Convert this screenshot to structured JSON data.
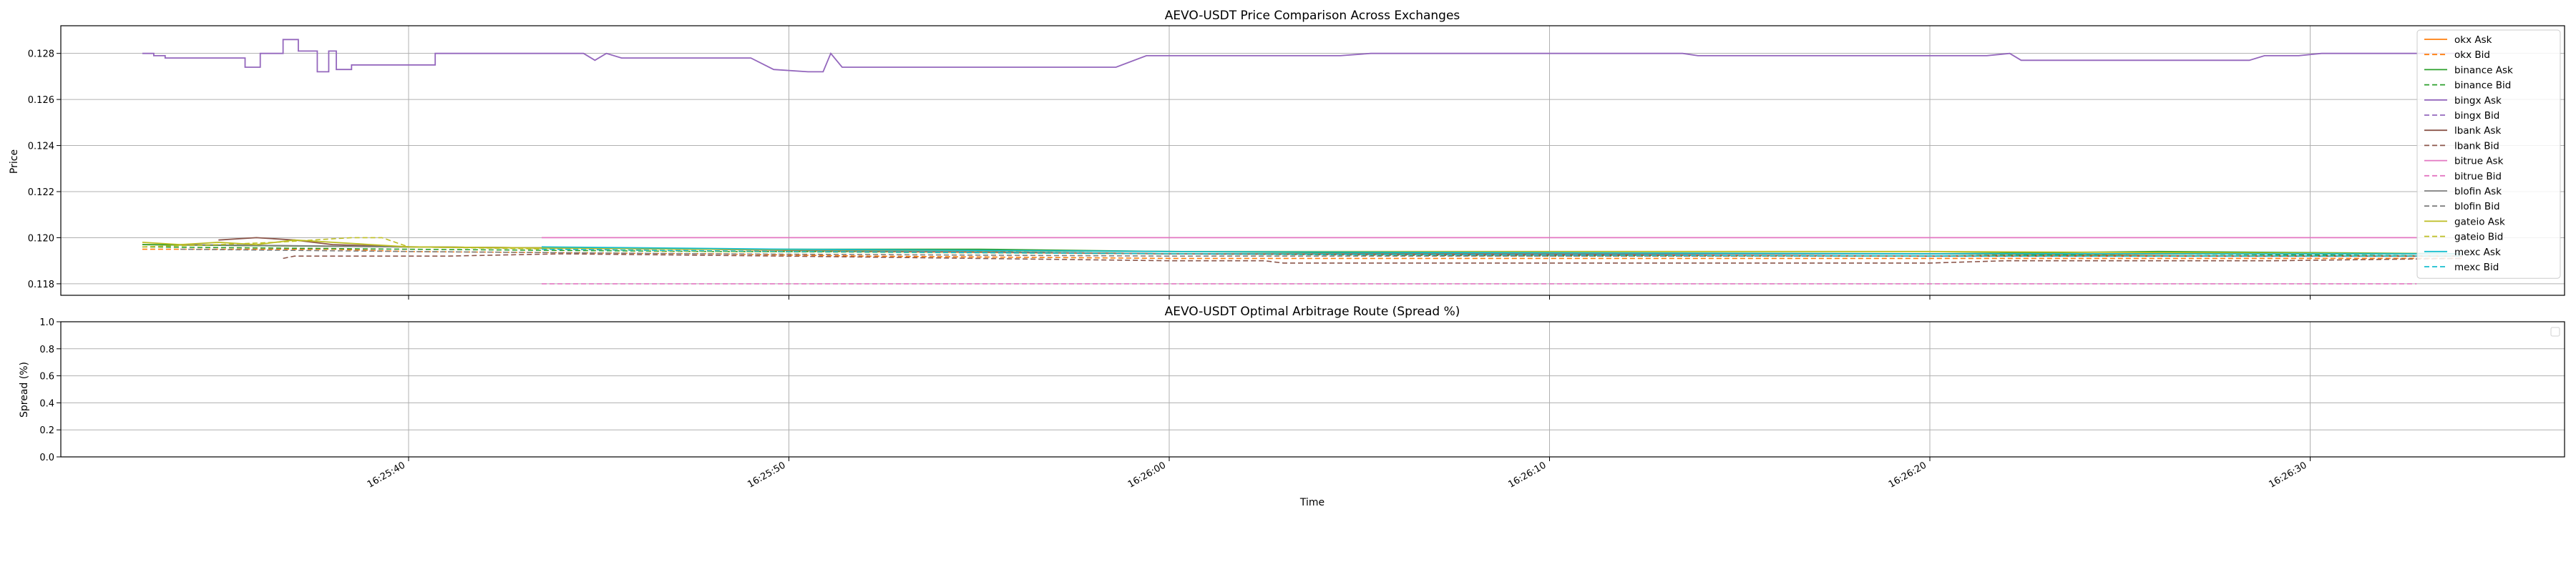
{
  "chart_data": [
    {
      "type": "line",
      "title": "AEVO-USDT Price Comparison Across Exchanges",
      "xlabel": "",
      "ylabel": "Price",
      "ylim": [
        0.1175,
        0.1292
      ],
      "grid": true,
      "legend_position": "right",
      "x_ticks": [
        "16:25:40",
        "16:25:50",
        "16:26:00",
        "16:26:10",
        "16:26:20",
        "16:26:30"
      ],
      "y_ticks": [
        0.118,
        0.12,
        0.122,
        0.124,
        0.126,
        0.128
      ],
      "y_tick_labels": [
        "0.118",
        "0.120",
        "0.122",
        "0.124",
        "0.126",
        "0.128"
      ],
      "series": [
        {
          "name": "okx Ask",
          "color": "#ff7f0e",
          "dash": "solid",
          "points": [
            [
              "16:25:33",
              0.1197
            ],
            [
              "16:25:40",
              0.1196
            ],
            [
              "16:25:48",
              0.1195
            ],
            [
              "16:25:52",
              0.1194
            ],
            [
              "16:26:00",
              0.1193
            ],
            [
              "16:26:14",
              0.1193
            ],
            [
              "16:26:20",
              0.1193
            ],
            [
              "16:26:28",
              0.1192
            ],
            [
              "16:26:34",
              0.1192
            ]
          ]
        },
        {
          "name": "okx Bid",
          "color": "#ff7f0e",
          "dash": "dashed",
          "points": [
            [
              "16:25:33",
              0.1195
            ],
            [
              "16:25:38",
              0.1195
            ],
            [
              "16:25:40",
              0.1194
            ],
            [
              "16:25:48",
              0.1193
            ],
            [
              "16:25:52",
              0.1192
            ],
            [
              "16:26:00",
              0.1191
            ],
            [
              "16:26:14",
              0.1191
            ],
            [
              "16:26:20",
              0.1191
            ],
            [
              "16:26:28",
              0.1191
            ],
            [
              "16:26:34",
              0.1191
            ]
          ]
        },
        {
          "name": "binance Ask",
          "color": "#2ca02c",
          "dash": "solid",
          "points": [
            [
              "16:25:33",
              0.1197
            ],
            [
              "16:25:40",
              0.1196
            ],
            [
              "16:25:48",
              0.1195
            ],
            [
              "16:25:55",
              0.1195
            ],
            [
              "16:26:00",
              0.1194
            ],
            [
              "16:26:10",
              0.1193
            ],
            [
              "16:26:20",
              0.1193
            ],
            [
              "16:26:26",
              0.1194
            ],
            [
              "16:26:34",
              0.1193
            ]
          ]
        },
        {
          "name": "binance Bid",
          "color": "#2ca02c",
          "dash": "dashed",
          "points": [
            [
              "16:25:33",
              0.1196
            ],
            [
              "16:25:40",
              0.1195
            ],
            [
              "16:25:48",
              0.1194
            ],
            [
              "16:25:55",
              0.1194
            ],
            [
              "16:26:00",
              0.1193
            ],
            [
              "16:26:10",
              0.1192
            ],
            [
              "16:26:20",
              0.1192
            ],
            [
              "16:26:26",
              0.1193
            ],
            [
              "16:26:34",
              0.1192
            ]
          ]
        },
        {
          "name": "bingx Ask",
          "color": "#9467bd",
          "dash": "solid",
          "points": [
            [
              "16:25:33",
              0.128
            ],
            [
              "16:25:33.3",
              0.128
            ],
            [
              "16:25:33.3",
              0.1279
            ],
            [
              "16:25:33.6",
              0.1279
            ],
            [
              "16:25:33.6",
              0.1278
            ],
            [
              "16:25:35.7",
              0.1278
            ],
            [
              "16:25:35.7",
              0.1274
            ],
            [
              "16:25:36.1",
              0.1274
            ],
            [
              "16:25:36.1",
              0.128
            ],
            [
              "16:25:36.7",
              0.128
            ],
            [
              "16:25:36.7",
              0.1286
            ],
            [
              "16:25:37.1",
              0.1286
            ],
            [
              "16:25:37.1",
              0.1281
            ],
            [
              "16:25:37.6",
              0.1281
            ],
            [
              "16:25:37.6",
              0.1272
            ],
            [
              "16:25:37.9",
              0.1272
            ],
            [
              "16:25:37.9",
              0.1281
            ],
            [
              "16:25:38.1",
              0.1281
            ],
            [
              "16:25:38.1",
              0.1273
            ],
            [
              "16:25:38.5",
              0.1273
            ],
            [
              "16:25:38.5",
              0.1275
            ],
            [
              "16:25:40.7",
              0.1275
            ],
            [
              "16:25:40.7",
              0.128
            ],
            [
              "16:25:44.6",
              0.128
            ],
            [
              "16:25:44.9",
              0.1277
            ],
            [
              "16:25:45.2",
              0.128
            ],
            [
              "16:25:45.6",
              0.1278
            ],
            [
              "16:25:49",
              0.1278
            ],
            [
              "16:25:49.6",
              0.1273
            ],
            [
              "16:25:50.5",
              0.1272
            ],
            [
              "16:25:50.9",
              0.1272
            ],
            [
              "16:25:51.1",
              0.128
            ],
            [
              "16:25:51.4",
              0.1274
            ],
            [
              "16:25:58.6",
              0.1274
            ],
            [
              "16:25:59.4",
              0.1279
            ],
            [
              "16:26:04.5",
              0.1279
            ],
            [
              "16:26:05.3",
              0.128
            ],
            [
              "16:26:13.5",
              0.128
            ],
            [
              "16:26:13.9",
              0.1279
            ],
            [
              "16:26:21.5",
              0.1279
            ],
            [
              "16:26:22.1",
              0.128
            ],
            [
              "16:26:22.4",
              0.1277
            ],
            [
              "16:26:28.4",
              0.1277
            ],
            [
              "16:26:28.8",
              0.1279
            ],
            [
              "16:26:29.7",
              0.1279
            ],
            [
              "16:26:30.3",
              0.128
            ],
            [
              "16:26:34",
              0.128
            ]
          ]
        },
        {
          "name": "bingx Bid",
          "color": "#9467bd",
          "dash": "dashed",
          "points": []
        },
        {
          "name": "lbank Ask",
          "color": "#8c564b",
          "dash": "solid",
          "points": [
            [
              "16:25:35",
              0.1199
            ],
            [
              "16:25:36",
              0.12
            ],
            [
              "16:25:37",
              0.1199
            ],
            [
              "16:25:38",
              0.1197
            ],
            [
              "16:25:40",
              0.1196
            ],
            [
              "16:25:48",
              0.1195
            ],
            [
              "16:26:00",
              0.1193
            ],
            [
              "16:26:20",
              0.1192
            ],
            [
              "16:26:34",
              0.1192
            ]
          ]
        },
        {
          "name": "lbank Bid",
          "color": "#8c564b",
          "dash": "dashed",
          "points": [
            [
              "16:25:36.7",
              0.1191
            ],
            [
              "16:25:37",
              0.1192
            ],
            [
              "16:25:41",
              0.1192
            ],
            [
              "16:25:44",
              0.1193
            ],
            [
              "16:25:50",
              0.1192
            ],
            [
              "16:26:00",
              0.119
            ],
            [
              "16:26:02.5",
              0.119
            ],
            [
              "16:26:03",
              0.1189
            ],
            [
              "16:26:05.5",
              0.1189
            ],
            [
              "16:26:14",
              0.1189
            ],
            [
              "16:26:20",
              0.1189
            ],
            [
              "16:26:22",
              0.119
            ],
            [
              "16:26:29",
              0.119
            ],
            [
              "16:26:34",
              0.1191
            ]
          ]
        },
        {
          "name": "bitrue Ask",
          "color": "#e377c2",
          "dash": "solid",
          "points": [
            [
              "16:25:43.5",
              0.12
            ],
            [
              "16:26:32.8",
              0.12
            ]
          ]
        },
        {
          "name": "bitrue Bid",
          "color": "#e377c2",
          "dash": "dashed",
          "points": [
            [
              "16:25:43.5",
              0.118
            ],
            [
              "16:26:32.8",
              0.118
            ]
          ]
        },
        {
          "name": "blofin Ask",
          "color": "#7f7f7f",
          "dash": "solid",
          "points": [
            [
              "16:25:34",
              0.1197
            ],
            [
              "16:25:40",
              0.1196
            ],
            [
              "16:25:48",
              0.1195
            ],
            [
              "16:26:00",
              0.1193
            ],
            [
              "16:26:20",
              0.1193
            ],
            [
              "16:26:34",
              0.1193
            ]
          ]
        },
        {
          "name": "blofin Bid",
          "color": "#7f7f7f",
          "dash": "dashed",
          "points": [
            [
              "16:25:34",
              0.1195
            ],
            [
              "16:25:40",
              0.1194
            ],
            [
              "16:25:48",
              0.1193
            ],
            [
              "16:26:00",
              0.1192
            ],
            [
              "16:26:20",
              0.1192
            ],
            [
              "16:26:34",
              0.1192
            ]
          ]
        },
        {
          "name": "gateio Ask",
          "color": "#bcbd22",
          "dash": "solid",
          "points": [
            [
              "16:25:33",
              0.1198
            ],
            [
              "16:25:34",
              0.1197
            ],
            [
              "16:25:35",
              0.1198
            ],
            [
              "16:25:36",
              0.1197
            ],
            [
              "16:25:37",
              0.1199
            ],
            [
              "16:25:38",
              0.1198
            ],
            [
              "16:25:39",
              0.1197
            ],
            [
              "16:25:40",
              0.1196
            ],
            [
              "16:25:48",
              0.1195
            ],
            [
              "16:26:00",
              0.1194
            ],
            [
              "16:26:20",
              0.1194
            ],
            [
              "16:26:34",
              0.1193
            ]
          ]
        },
        {
          "name": "gateio Bid",
          "color": "#bcbd22",
          "dash": "dashed",
          "points": [
            [
              "16:25:33",
              0.1196
            ],
            [
              "16:25:35",
              0.1197
            ],
            [
              "16:25:36.5",
              0.1198
            ],
            [
              "16:25:37.5",
              0.1199
            ],
            [
              "16:25:38.5",
              0.12
            ],
            [
              "16:25:39.3",
              0.12
            ],
            [
              "16:25:40",
              0.1196
            ],
            [
              "16:25:48",
              0.1194
            ],
            [
              "16:26:00",
              0.1193
            ],
            [
              "16:26:20",
              0.1192
            ],
            [
              "16:26:34",
              0.1192
            ]
          ]
        },
        {
          "name": "mexc Ask",
          "color": "#17becf",
          "dash": "solid",
          "points": [
            [
              "16:25:43.5",
              0.1196
            ],
            [
              "16:25:50",
              0.1195
            ],
            [
              "16:26:00",
              0.1194
            ],
            [
              "16:26:20",
              0.1193
            ],
            [
              "16:26:34",
              0.1193
            ]
          ]
        },
        {
          "name": "mexc Bid",
          "color": "#17becf",
          "dash": "dashed",
          "points": [
            [
              "16:25:43.5",
              0.1195
            ],
            [
              "16:25:50",
              0.1194
            ],
            [
              "16:26:00",
              0.1193
            ],
            [
              "16:26:20",
              0.1192
            ],
            [
              "16:26:34",
              0.1192
            ]
          ]
        }
      ]
    },
    {
      "type": "line",
      "title": "AEVO-USDT Optimal Arbitrage Route (Spread %)",
      "xlabel": "Time",
      "ylabel": "Spread (%)",
      "ylim": [
        0.0,
        1.0
      ],
      "grid": true,
      "legend_position": "top-right",
      "x_ticks": [
        "16:25:40",
        "16:25:50",
        "16:26:00",
        "16:26:10",
        "16:26:20",
        "16:26:30"
      ],
      "y_ticks": [
        0.0,
        0.2,
        0.4,
        0.6,
        0.8,
        1.0
      ],
      "y_tick_labels": [
        "0.0",
        "0.2",
        "0.4",
        "0.6",
        "0.8",
        "1.0"
      ],
      "series": []
    }
  ]
}
